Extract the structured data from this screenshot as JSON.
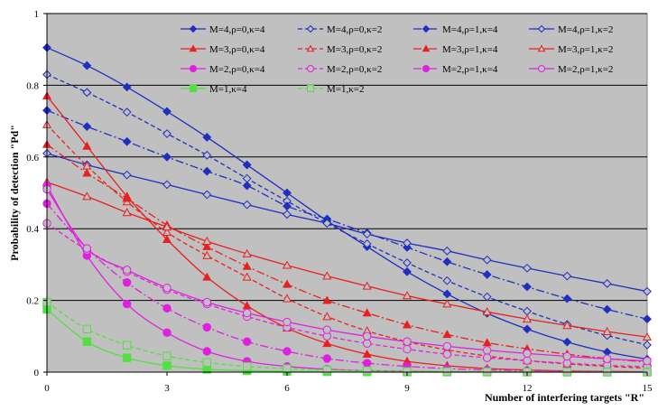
{
  "chart_data": {
    "type": "line",
    "title": "",
    "xlabel": "Number of interfering targets \"R\"",
    "ylabel": "Probability of detection \"Pd\"",
    "xlim": [
      0,
      15
    ],
    "ylim": [
      0,
      1
    ],
    "xticks": [
      "0",
      "3",
      "6",
      "9",
      "12",
      "15"
    ],
    "xtick_values": [
      0,
      3,
      6,
      9,
      12,
      15
    ],
    "yticks": [
      "0",
      "0.2",
      "0.4",
      "0.6",
      "0.8",
      "1"
    ],
    "ytick_values": [
      0,
      0.2,
      0.4,
      0.6,
      0.8,
      1
    ],
    "grid": "horizontal",
    "plot_background": "#c0c0c0",
    "legend_position": "top-right (inside plot)",
    "series": [
      {
        "name": "M=4,ρ=0,κ=4",
        "color": "#1f2fbf",
        "dash": "solid",
        "marker": "diamond",
        "filled": true,
        "x": [
          0,
          1,
          2,
          3,
          4,
          5,
          6,
          7,
          8,
          9,
          10,
          11,
          12,
          13,
          14,
          15
        ],
        "y": [
          0.905,
          0.855,
          0.795,
          0.727,
          0.655,
          0.578,
          0.5,
          0.422,
          0.35,
          0.28,
          0.218,
          0.164,
          0.12,
          0.084,
          0.056,
          0.036
        ]
      },
      {
        "name": "M=4,ρ=0,κ=2",
        "color": "#1f2fbf",
        "dash": "dashed",
        "marker": "diamond",
        "filled": false,
        "x": [
          0,
          1,
          2,
          3,
          4,
          5,
          6,
          7,
          8,
          9,
          10,
          11,
          12,
          13,
          14,
          15
        ],
        "y": [
          0.83,
          0.78,
          0.725,
          0.665,
          0.605,
          0.54,
          0.477,
          0.415,
          0.358,
          0.305,
          0.255,
          0.21,
          0.17,
          0.133,
          0.102,
          0.076
        ]
      },
      {
        "name": "M=4,ρ=1,κ=4",
        "color": "#1f2fbf",
        "dash": "dashdot",
        "marker": "diamond",
        "filled": true,
        "x": [
          0,
          1,
          2,
          3,
          4,
          5,
          6,
          7,
          8,
          9,
          10,
          11,
          12,
          13,
          14,
          15
        ],
        "y": [
          0.73,
          0.685,
          0.643,
          0.6,
          0.56,
          0.52,
          0.463,
          0.427,
          0.388,
          0.348,
          0.308,
          0.272,
          0.238,
          0.205,
          0.175,
          0.148
        ]
      },
      {
        "name": "M=4,ρ=1,κ=2",
        "color": "#1f2fbf",
        "dash": "solid",
        "marker": "diamond",
        "filled": false,
        "x": [
          0,
          1,
          2,
          3,
          4,
          5,
          6,
          7,
          8,
          9,
          10,
          11,
          12,
          13,
          14,
          15
        ],
        "y": [
          0.61,
          0.578,
          0.55,
          0.523,
          0.495,
          0.467,
          0.44,
          0.415,
          0.385,
          0.36,
          0.338,
          0.313,
          0.29,
          0.268,
          0.247,
          0.225
        ]
      },
      {
        "name": "M=3,ρ=0,κ=4",
        "color": "#e82020",
        "dash": "solid",
        "marker": "triangle",
        "filled": true,
        "x": [
          0,
          1,
          2,
          3,
          4,
          5,
          6,
          7,
          8,
          9,
          10,
          11,
          12,
          13,
          14,
          15
        ],
        "y": [
          0.77,
          0.63,
          0.49,
          0.37,
          0.265,
          0.185,
          0.123,
          0.08,
          0.05,
          0.03,
          0.018,
          0.01,
          0.006,
          0.003,
          0.002,
          0.001
        ]
      },
      {
        "name": "M=3,ρ=0,κ=2",
        "color": "#e82020",
        "dash": "dashed",
        "marker": "triangle",
        "filled": false,
        "x": [
          0,
          1,
          2,
          3,
          4,
          5,
          6,
          7,
          8,
          9,
          10,
          11,
          12,
          13,
          14,
          15
        ],
        "y": [
          0.69,
          0.575,
          0.475,
          0.39,
          0.325,
          0.265,
          0.205,
          0.155,
          0.115,
          0.085,
          0.062,
          0.045,
          0.032,
          0.023,
          0.016,
          0.011
        ]
      },
      {
        "name": "M=3,ρ=1,κ=4",
        "color": "#e82020",
        "dash": "dashdot",
        "marker": "triangle",
        "filled": true,
        "x": [
          0,
          1,
          2,
          3,
          4,
          5,
          6,
          7,
          8,
          9,
          10,
          11,
          12,
          13,
          14,
          15
        ],
        "y": [
          0.635,
          0.555,
          0.485,
          0.41,
          0.35,
          0.295,
          0.245,
          0.2,
          0.165,
          0.132,
          0.105,
          0.082,
          0.065,
          0.05,
          0.038,
          0.028
        ]
      },
      {
        "name": "M=3,ρ=1,κ=2",
        "color": "#e82020",
        "dash": "solid",
        "marker": "triangle",
        "filled": false,
        "x": [
          0,
          1,
          2,
          3,
          4,
          5,
          6,
          7,
          8,
          9,
          10,
          11,
          12,
          13,
          14,
          15
        ],
        "y": [
          0.53,
          0.49,
          0.445,
          0.405,
          0.365,
          0.33,
          0.298,
          0.268,
          0.24,
          0.213,
          0.19,
          0.168,
          0.148,
          0.13,
          0.113,
          0.098
        ]
      },
      {
        "name": "M=2,ρ=0,κ=4",
        "color": "#e020e0",
        "dash": "solid",
        "marker": "circle",
        "filled": true,
        "x": [
          0,
          1,
          2,
          3,
          4,
          5,
          6,
          7,
          8,
          9,
          10,
          11,
          12,
          13,
          14,
          15
        ],
        "y": [
          0.52,
          0.325,
          0.19,
          0.11,
          0.058,
          0.03,
          0.016,
          0.008,
          0.004,
          0.002,
          0.001,
          0.0005,
          0.0003,
          0.0002,
          0.0001,
          0.0001
        ]
      },
      {
        "name": "M=2,ρ=0,κ=2",
        "color": "#e020e0",
        "dash": "dashed",
        "marker": "circle",
        "filled": false,
        "x": [
          0,
          1,
          2,
          3,
          4,
          5,
          6,
          7,
          8,
          9,
          10,
          11,
          12,
          13,
          14,
          15
        ],
        "y": [
          0.415,
          0.34,
          0.28,
          0.23,
          0.19,
          0.155,
          0.125,
          0.1,
          0.08,
          0.064,
          0.05,
          0.04,
          0.032,
          0.025,
          0.019,
          0.015
        ]
      },
      {
        "name": "M=2,ρ=1,κ=4",
        "color": "#e020e0",
        "dash": "dashdot",
        "marker": "circle",
        "filled": true,
        "x": [
          0,
          1,
          2,
          3,
          4,
          5,
          6,
          7,
          8,
          9,
          10,
          11,
          12,
          13,
          14,
          15
        ],
        "y": [
          0.47,
          0.345,
          0.25,
          0.178,
          0.125,
          0.085,
          0.058,
          0.038,
          0.025,
          0.016,
          0.01,
          0.006,
          0.004,
          0.002,
          0.001,
          0.001
        ]
      },
      {
        "name": "M=2,ρ=1,κ=2",
        "color": "#e020e0",
        "dash": "solid",
        "marker": "circle",
        "filled": false,
        "x": [
          0,
          1,
          2,
          3,
          4,
          5,
          6,
          7,
          8,
          9,
          10,
          11,
          12,
          13,
          14,
          15
        ],
        "y": [
          0.51,
          0.345,
          0.285,
          0.235,
          0.195,
          0.165,
          0.14,
          0.118,
          0.1,
          0.085,
          0.072,
          0.061,
          0.052,
          0.044,
          0.037,
          0.031
        ]
      },
      {
        "name": "M=1,κ=4",
        "color": "#50e040",
        "dash": "solid",
        "marker": "square",
        "filled": true,
        "x": [
          0,
          1,
          2,
          3,
          4,
          5,
          6,
          7,
          8,
          9,
          10,
          11,
          12,
          13,
          14,
          15
        ],
        "y": [
          0.175,
          0.085,
          0.04,
          0.018,
          0.008,
          0.004,
          0.002,
          0.001,
          0.0005,
          0.0002,
          0.0001,
          0.0001,
          0,
          0,
          0,
          0
        ]
      },
      {
        "name": "M=1,κ=2",
        "color": "#50e040",
        "dash": "dashed",
        "marker": "square",
        "filled": false,
        "x": [
          0,
          1,
          2,
          3,
          4,
          5,
          6,
          7,
          8,
          9,
          10,
          11,
          12,
          13,
          14,
          15
        ],
        "y": [
          0.195,
          0.12,
          0.075,
          0.045,
          0.027,
          0.016,
          0.01,
          0.006,
          0.004,
          0.002,
          0.0015,
          0.001,
          0.0005,
          0.0003,
          0.0002,
          0.0001
        ]
      }
    ]
  }
}
